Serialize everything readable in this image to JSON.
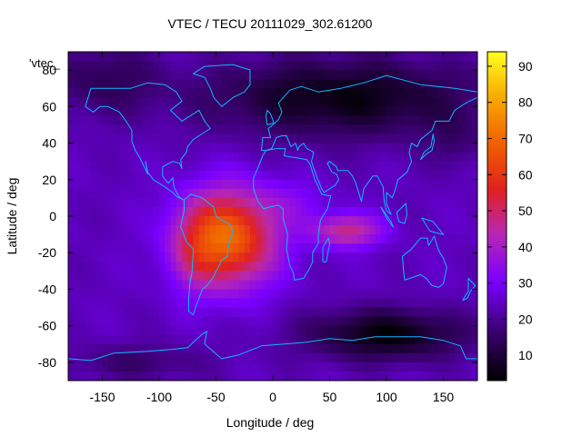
{
  "chart_data": {
    "type": "heatmap",
    "title": "VTEC / TECU 20111029_302.61200",
    "xlabel": "Longitude / deg",
    "ylabel": "Latitude / deg",
    "key_label": "'vtec_",
    "xlim": [
      -180,
      180
    ],
    "ylim": [
      -90,
      90
    ],
    "xticks": [
      -150,
      -100,
      -50,
      0,
      50,
      100,
      150
    ],
    "yticks": [
      -80,
      -60,
      -40,
      -20,
      0,
      20,
      40,
      60,
      80
    ],
    "colorbar": {
      "range": [
        3,
        94
      ],
      "ticks": [
        10,
        20,
        30,
        40,
        50,
        60,
        70,
        80,
        90
      ],
      "palette": "gnuplot black-purple-red-orange-yellow"
    },
    "features": [
      {
        "name": "main enhancement (South America / South Atlantic)",
        "lon": -40,
        "lat": -12,
        "peak_tecu": 72
      },
      {
        "name": "Indian Ocean tongue",
        "lon": 70,
        "lat": -8,
        "peak_tecu": 50
      },
      {
        "name": "Northern polar minimum",
        "lon": 60,
        "lat": 65,
        "min_tecu": 5
      },
      {
        "name": "Southern polar minimum",
        "lon": 100,
        "lat": -65,
        "min_tecu": 4
      }
    ],
    "grid": false,
    "coastlines": true
  }
}
